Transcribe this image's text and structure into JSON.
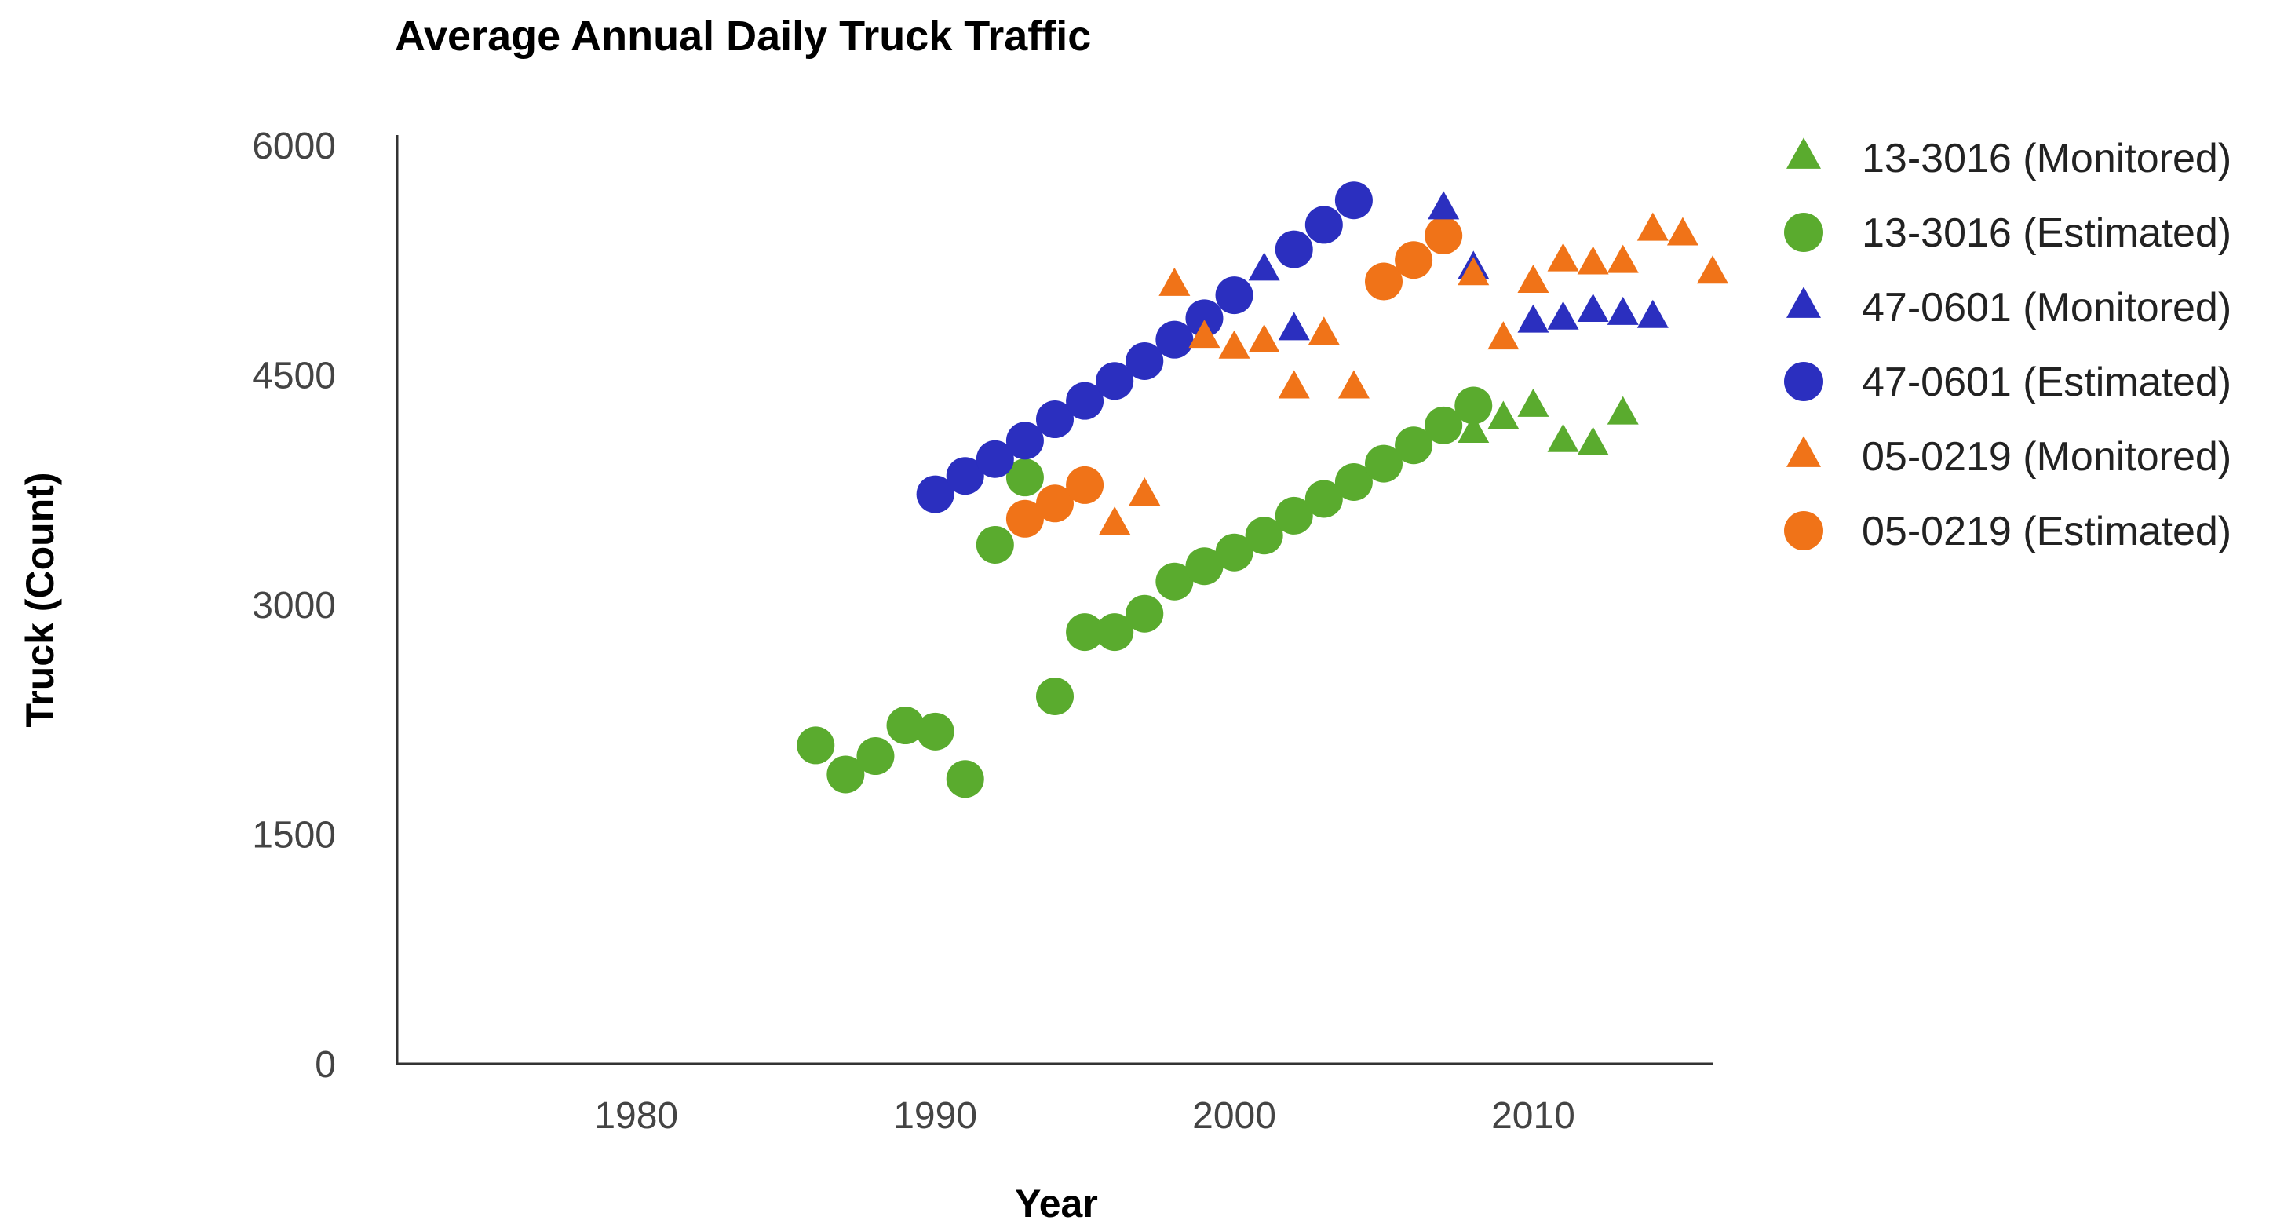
{
  "chart_data": {
    "type": "scatter",
    "title": "Average Annual Daily Truck Traffic",
    "xlabel": "Year",
    "ylabel": "Truck (Count)",
    "xlim": [
      1972,
      2016
    ],
    "ylim": [
      0,
      6000
    ],
    "xticks": [
      1980,
      1990,
      2000,
      2010
    ],
    "yticks": [
      0,
      1500,
      3000,
      4500,
      6000
    ],
    "grid": false,
    "legend_position": "right",
    "series": [
      {
        "name": "13-3016 (Monitored)",
        "marker": "triangle",
        "color": "#5aab2e",
        "points": [
          [
            2008,
            4130
          ],
          [
            2009,
            4220
          ],
          [
            2010,
            4300
          ],
          [
            2011,
            4070
          ],
          [
            2012,
            4050
          ],
          [
            2013,
            4250
          ]
        ]
      },
      {
        "name": "13-3016 (Estimated)",
        "marker": "circle",
        "color": "#5aab2e",
        "points": [
          [
            1986,
            2080
          ],
          [
            1987,
            1890
          ],
          [
            1988,
            2010
          ],
          [
            1989,
            2210
          ],
          [
            1990,
            2170
          ],
          [
            1991,
            1860
          ],
          [
            1992,
            3390
          ],
          [
            1993,
            3830
          ],
          [
            1994,
            2400
          ],
          [
            1995,
            2820
          ],
          [
            1996,
            2820
          ],
          [
            1997,
            2940
          ],
          [
            1998,
            3150
          ],
          [
            1999,
            3250
          ],
          [
            2000,
            3340
          ],
          [
            2001,
            3450
          ],
          [
            2002,
            3580
          ],
          [
            2003,
            3690
          ],
          [
            2004,
            3800
          ],
          [
            2005,
            3920
          ],
          [
            2006,
            4040
          ],
          [
            2007,
            4170
          ],
          [
            2008,
            4300
          ]
        ]
      },
      {
        "name": "47-0601 (Monitored)",
        "marker": "triangle",
        "color": "#2b2fbf",
        "points": [
          [
            2001,
            5190
          ],
          [
            2002,
            4800
          ],
          [
            2007,
            5590
          ],
          [
            2008,
            5200
          ],
          [
            2010,
            4850
          ],
          [
            2011,
            4870
          ],
          [
            2012,
            4920
          ],
          [
            2013,
            4900
          ],
          [
            2014,
            4880
          ]
        ]
      },
      {
        "name": "47-0601 (Estimated)",
        "marker": "circle",
        "color": "#2b2fbf",
        "points": [
          [
            1990,
            3720
          ],
          [
            1991,
            3840
          ],
          [
            1992,
            3950
          ],
          [
            1993,
            4070
          ],
          [
            1994,
            4210
          ],
          [
            1995,
            4330
          ],
          [
            1996,
            4460
          ],
          [
            1997,
            4590
          ],
          [
            1998,
            4730
          ],
          [
            1999,
            4870
          ],
          [
            2000,
            5020
          ],
          [
            2002,
            5320
          ],
          [
            2003,
            5480
          ],
          [
            2004,
            5640
          ]
        ]
      },
      {
        "name": "05-0219 (Monitored)",
        "marker": "triangle",
        "color": "#f07318",
        "points": [
          [
            1996,
            3530
          ],
          [
            1997,
            3720
          ],
          [
            1998,
            5090
          ],
          [
            1999,
            4750
          ],
          [
            2000,
            4680
          ],
          [
            2001,
            4720
          ],
          [
            2002,
            4420
          ],
          [
            2003,
            4770
          ],
          [
            2004,
            4420
          ],
          [
            2008,
            5160
          ],
          [
            2009,
            4740
          ],
          [
            2010,
            5110
          ],
          [
            2011,
            5250
          ],
          [
            2012,
            5230
          ],
          [
            2013,
            5240
          ],
          [
            2014,
            5450
          ],
          [
            2015,
            5420
          ],
          [
            2016,
            5170
          ]
        ]
      },
      {
        "name": "05-0219 (Estimated)",
        "marker": "circle",
        "color": "#f07318",
        "points": [
          [
            1993,
            3560
          ],
          [
            1994,
            3660
          ],
          [
            1995,
            3780
          ],
          [
            2005,
            5110
          ],
          [
            2006,
            5250
          ],
          [
            2007,
            5410
          ]
        ]
      }
    ]
  }
}
